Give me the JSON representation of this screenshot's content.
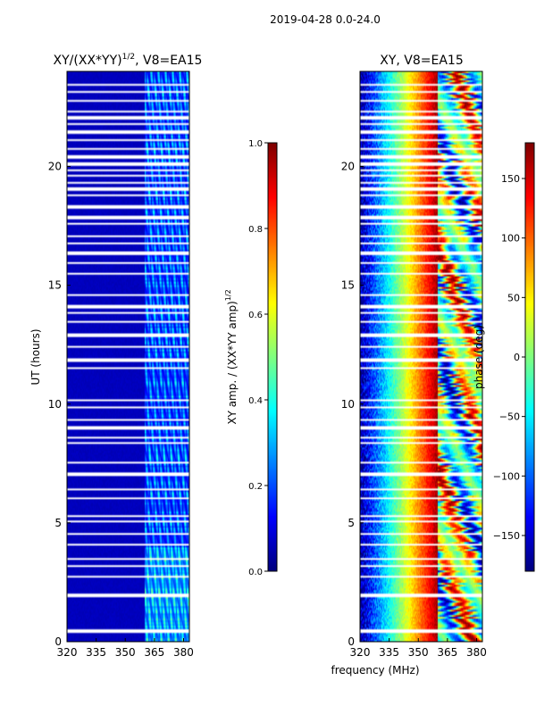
{
  "figure": {
    "suptitle": "2019-04-28 0.0-24.0",
    "xlabel": "frequency (MHz)"
  },
  "chart_data": [
    {
      "type": "heatmap",
      "title": "XY/(XX*YY)",
      "title_superscript": "1/2",
      "title_suffix": ", V8=EA15",
      "xlabel": "",
      "ylabel": "UT (hours)",
      "x_range": [
        320,
        383
      ],
      "y_range": [
        0,
        24
      ],
      "x_ticks": [
        "320",
        "335",
        "350",
        "365",
        "380"
      ],
      "y_ticks": [
        "0",
        "5",
        "10",
        "15",
        "20"
      ],
      "colorbar": {
        "label": "XY amp. / (XX*YY amp)",
        "label_superscript": "1/2",
        "range": [
          0.0,
          1.0
        ],
        "ticks": [
          "0.0",
          "0.2",
          "0.4",
          "0.6",
          "0.8",
          "1.0"
        ],
        "colormap": "jet"
      },
      "structure": {
        "background_value": 0.05,
        "bright_band_mhz": [
          360,
          383
        ],
        "bright_value_range": [
          0.1,
          0.45
        ]
      }
    },
    {
      "type": "heatmap",
      "title": "XY, V8=EA15",
      "xlabel": "frequency (MHz)",
      "ylabel": "",
      "x_range": [
        320,
        383
      ],
      "y_range": [
        0,
        24
      ],
      "x_ticks": [
        "320",
        "335",
        "350",
        "365",
        "380"
      ],
      "y_ticks": [
        "0",
        "5",
        "10",
        "15",
        "20"
      ],
      "colorbar": {
        "label": "phase (deg)",
        "range": [
          -180,
          180
        ],
        "ticks": [
          "−150",
          "−100",
          "−50",
          "0",
          "50",
          "100",
          "150"
        ],
        "tick_values": [
          -150,
          -100,
          -50,
          0,
          50,
          100,
          150
        ],
        "colormap": "jet"
      },
      "structure": {
        "phase_ramp_mhz": [
          320,
          360
        ],
        "phase_start_deg": -170,
        "phase_end_deg": 170,
        "mixed_band_mhz": [
          360,
          383
        ]
      }
    }
  ],
  "flagged_gaps_hours": [
    0.45,
    1.95,
    2.75,
    3.2,
    3.5,
    4.1,
    4.55,
    5.05,
    5.3,
    6.05,
    6.4,
    7.05,
    7.55,
    8.35,
    8.6,
    9.0,
    9.35,
    9.85,
    10.15,
    11.5,
    11.85,
    12.4,
    12.9,
    13.45,
    13.85,
    14.1,
    14.6,
    15.5,
    15.95,
    16.35,
    16.75,
    17.05,
    17.6,
    17.85,
    18.3,
    18.8,
    19.05,
    19.3,
    19.6,
    19.85,
    20.1,
    20.4,
    20.75,
    21.1,
    21.45,
    21.8,
    22.05,
    22.3,
    22.75,
    23.15,
    23.45
  ]
}
